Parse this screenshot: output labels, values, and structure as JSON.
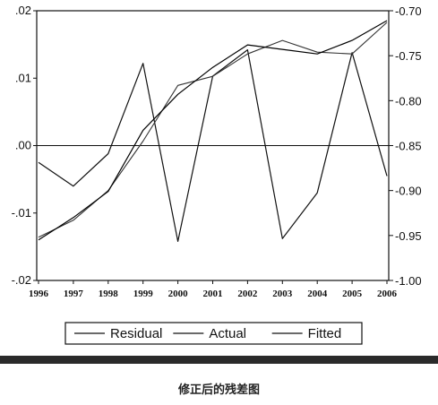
{
  "chart_data": {
    "type": "line",
    "title": "",
    "caption": "修正后的残差图",
    "x": [
      "1996",
      "1997",
      "1998",
      "1999",
      "2000",
      "2001",
      "2002",
      "2003",
      "2004",
      "2005",
      "2006"
    ],
    "left_axis": {
      "ylim": [
        -0.02,
        0.02
      ],
      "ticks": [
        0.02,
        0.01,
        0.0,
        -0.01,
        -0.02
      ],
      "tick_labels": [
        ".02",
        ".01",
        ".00",
        "-.01",
        "-.02"
      ]
    },
    "right_axis": {
      "ylim": [
        -1.0,
        -0.7
      ],
      "ticks": [
        -0.7,
        -0.75,
        -0.8,
        -0.85,
        -0.9,
        -0.95,
        -1.0
      ],
      "tick_labels": [
        "-0.70",
        "-0.75",
        "-0.80",
        "-0.85",
        "-0.90",
        "-0.95",
        "-1.00"
      ]
    },
    "zero_line": 0.0,
    "series": [
      {
        "name": "Residual",
        "axis": "left",
        "values": [
          -0.0025,
          -0.006,
          -0.0012,
          0.0122,
          -0.0142,
          0.0103,
          0.0142,
          -0.0138,
          -0.007,
          0.0138,
          -0.0045
        ]
      },
      {
        "name": "Actual",
        "axis": "right",
        "values": [
          -0.952,
          -0.933,
          -0.9,
          -0.845,
          -0.783,
          -0.773,
          -0.748,
          -0.733,
          -0.746,
          -0.748,
          -0.713
        ]
      },
      {
        "name": "Fitted",
        "axis": "right",
        "values": [
          -0.955,
          -0.93,
          -0.901,
          -0.833,
          -0.793,
          -0.763,
          -0.738,
          -0.743,
          -0.748,
          -0.733,
          -0.711
        ]
      }
    ],
    "legend": {
      "placement": "bottom",
      "entries": [
        "Residual",
        "Actual",
        "Fitted"
      ]
    },
    "grid": false
  }
}
